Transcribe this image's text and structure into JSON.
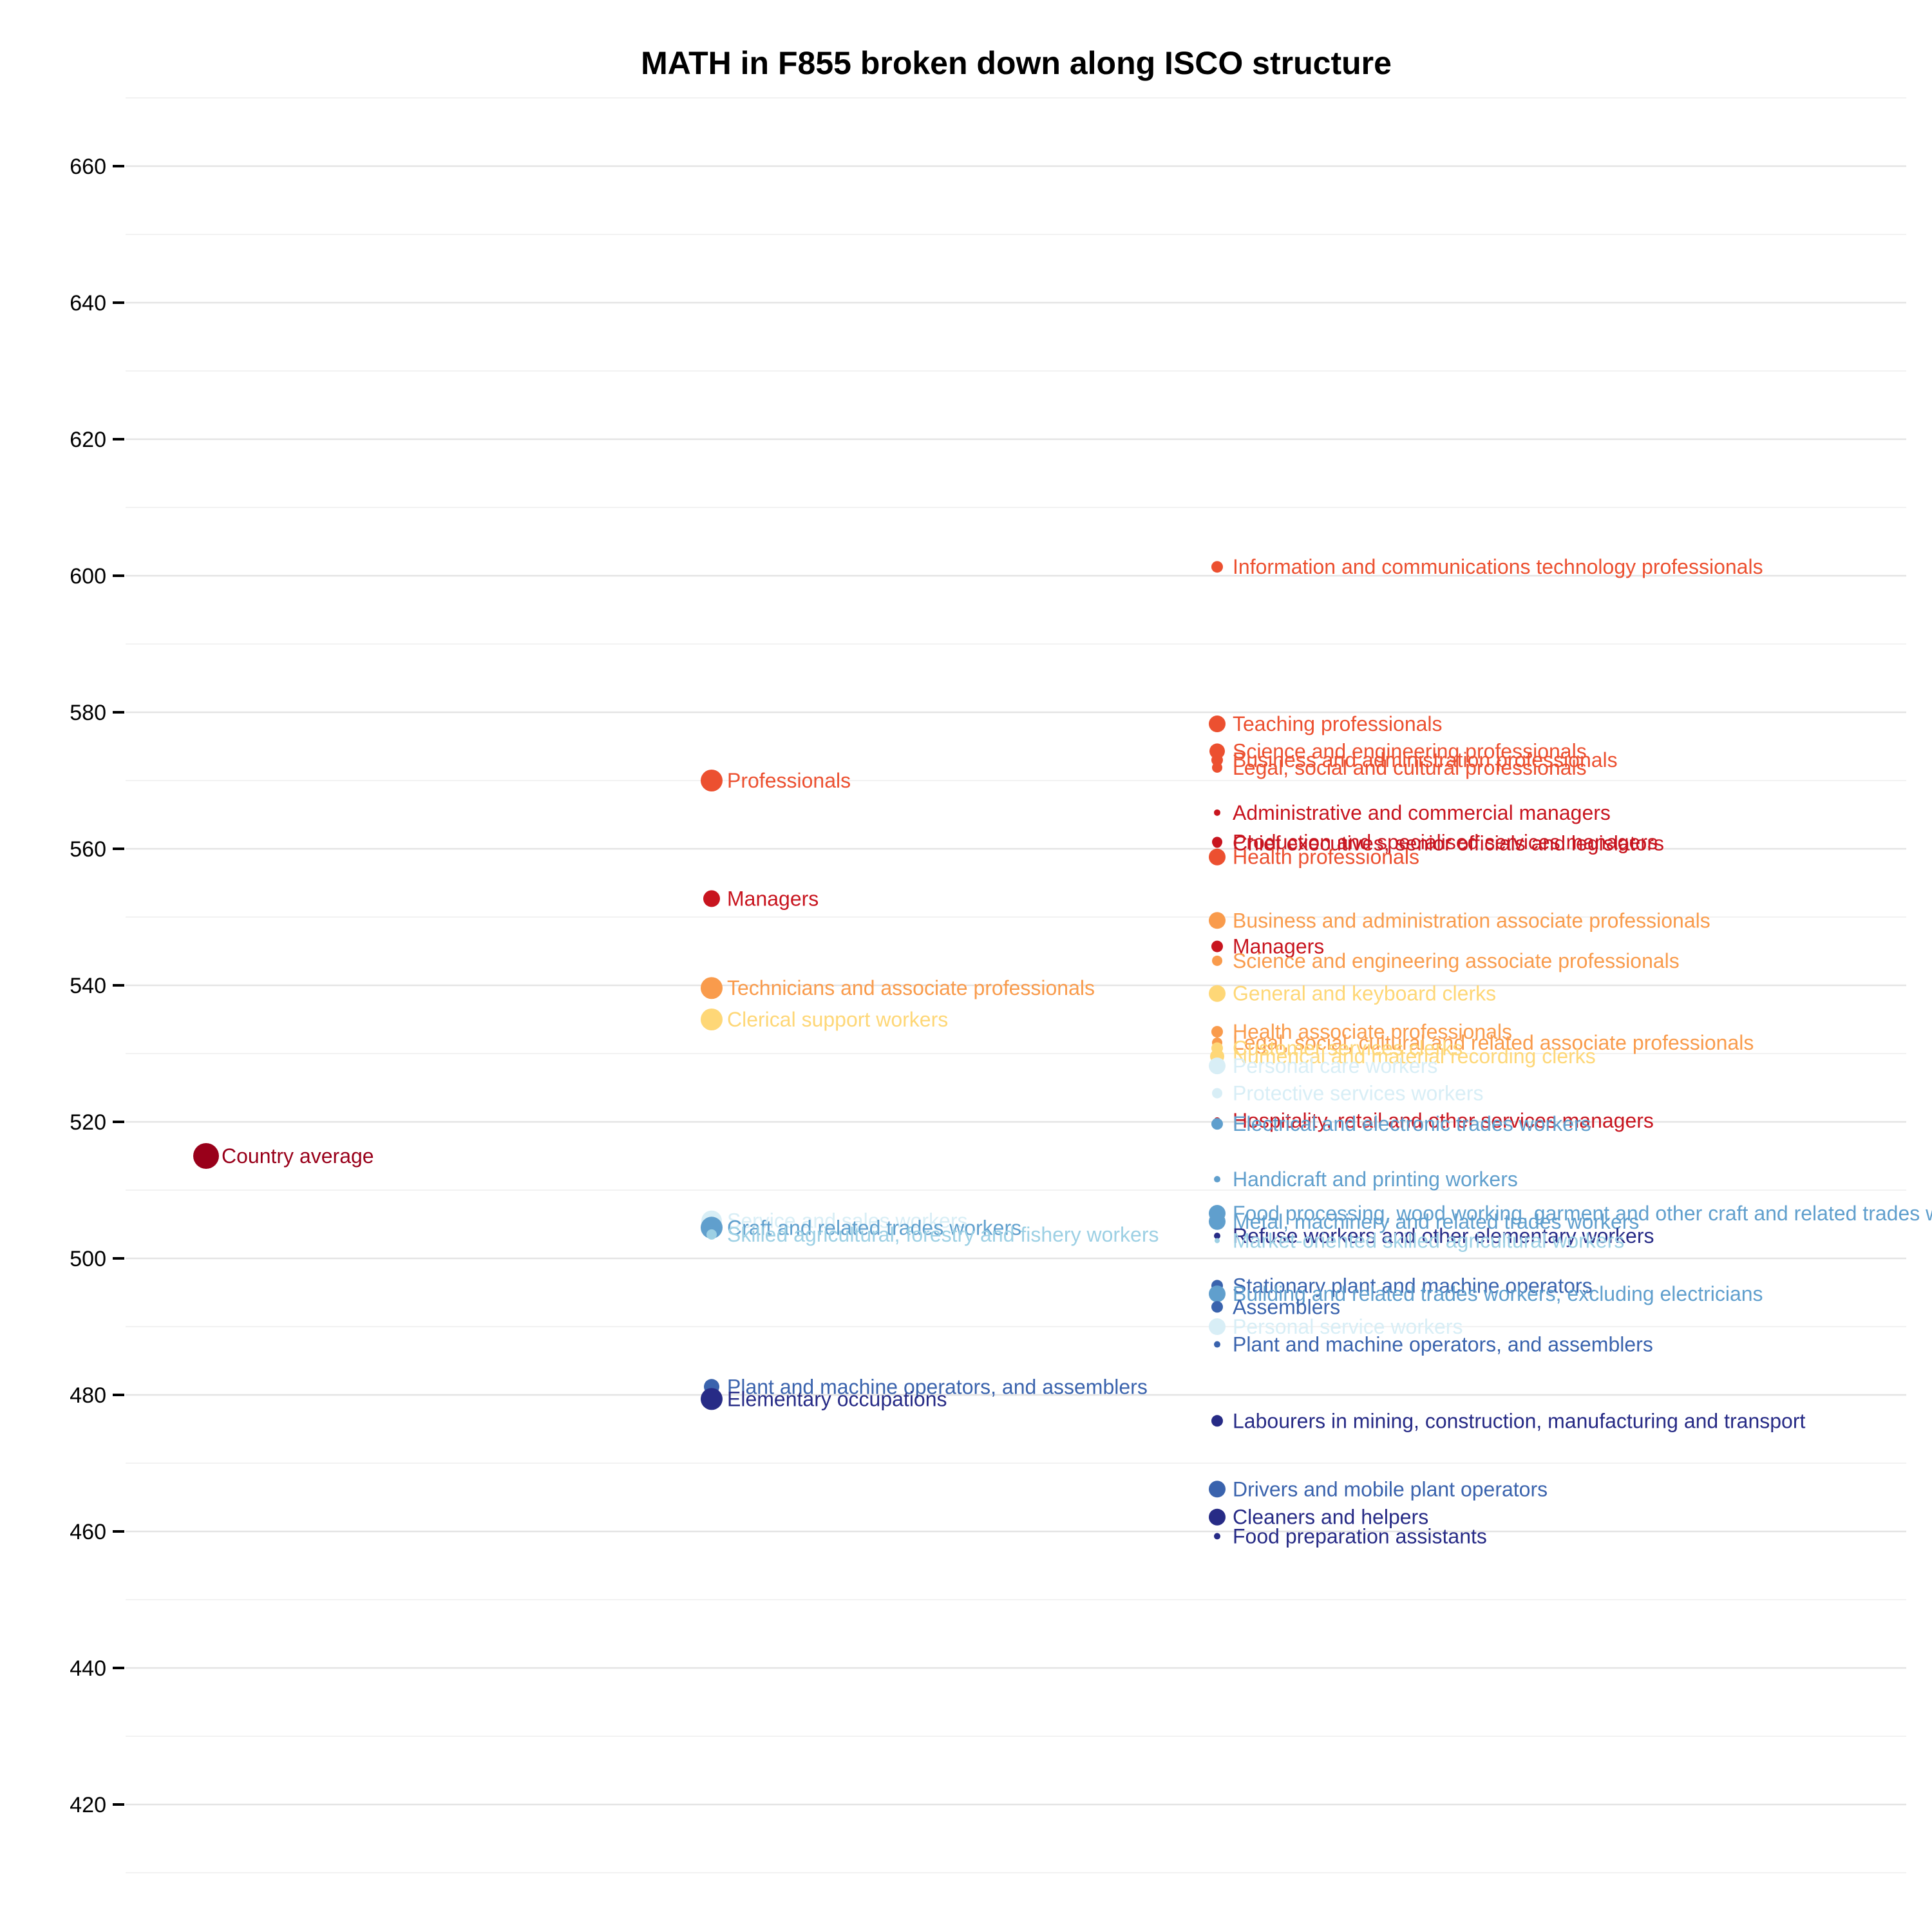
{
  "chart_data": {
    "type": "scatter",
    "title": "MATH in F855 broken down along ISCO structure",
    "xlabel": "",
    "ylabel": "",
    "ylim": [
      410,
      670
    ],
    "yticks": [
      420,
      440,
      460,
      480,
      500,
      520,
      540,
      560,
      580,
      600,
      620,
      640,
      660
    ],
    "grid": true,
    "legend": "none",
    "levels": [
      0,
      1,
      2
    ],
    "points": [
      {
        "level": 0,
        "label": "Country average",
        "value": 515,
        "color": "#99001a",
        "size": 20
      },
      {
        "level": 1,
        "label": "Professionals",
        "value": 570,
        "color": "#ec5030",
        "size": 17
      },
      {
        "level": 1,
        "label": "Managers",
        "value": 552.7,
        "color": "#c8151f",
        "size": 13
      },
      {
        "level": 1,
        "label": "Technicians and associate professionals",
        "value": 539.6,
        "color": "#f99b4c",
        "size": 17
      },
      {
        "level": 1,
        "label": "Clerical support workers",
        "value": 535,
        "color": "#fed777",
        "size": 17
      },
      {
        "level": 1,
        "label": "Service and sales workers",
        "value": 505.5,
        "color": "#d8eef6",
        "size": 16
      },
      {
        "level": 1,
        "label": "Craft and related trades workers",
        "value": 504.5,
        "color": "#609fcd",
        "size": 17
      },
      {
        "level": 1,
        "label": "Skilled agricultural, forestry and fishery workers",
        "value": 503.5,
        "color": "#9dd0e4",
        "size": 8
      },
      {
        "level": 1,
        "label": "Plant and machine operators, and assemblers",
        "value": 481.2,
        "color": "#3a63ad",
        "size": 12
      },
      {
        "level": 1,
        "label": "Elementary occupations",
        "value": 479.4,
        "color": "#272b86",
        "size": 17
      },
      {
        "level": 2,
        "label": "Information and communications technology professionals",
        "value": 601.3,
        "color": "#ec5030",
        "size": 9
      },
      {
        "level": 2,
        "label": "Teaching professionals",
        "value": 578.3,
        "color": "#ec5030",
        "size": 13
      },
      {
        "level": 2,
        "label": "Science and engineering professionals",
        "value": 574.3,
        "color": "#ec5030",
        "size": 12
      },
      {
        "level": 2,
        "label": "Business and administration professionals",
        "value": 573,
        "color": "#ec5030",
        "size": 9
      },
      {
        "level": 2,
        "label": "Legal, social and cultural professionals",
        "value": 571.9,
        "color": "#ec5030",
        "size": 8
      },
      {
        "level": 2,
        "label": "Administrative and commercial managers",
        "value": 565.3,
        "color": "#c8151f",
        "size": 5
      },
      {
        "level": 2,
        "label": "Production and specialised services managers",
        "value": 561,
        "color": "#c8151f",
        "size": 8
      },
      {
        "level": 2,
        "label": "Chief executives, senior officials and legislators",
        "value": 560.8,
        "color": "#c8151f",
        "size": 7
      },
      {
        "level": 2,
        "label": "Health professionals",
        "value": 558.8,
        "color": "#ec5030",
        "size": 13
      },
      {
        "level": 2,
        "label": "Business and administration associate professionals",
        "value": 549.5,
        "color": "#f99b4c",
        "size": 13
      },
      {
        "level": 2,
        "label": "Managers",
        "value": 545.7,
        "color": "#c8151f",
        "size": 9
      },
      {
        "level": 2,
        "label": "Science and engineering associate professionals",
        "value": 543.6,
        "color": "#f99b4c",
        "size": 8
      },
      {
        "level": 2,
        "label": "General and keyboard clerks",
        "value": 538.8,
        "color": "#fed777",
        "size": 13
      },
      {
        "level": 2,
        "label": "Health associate professionals",
        "value": 533.2,
        "color": "#f99b4c",
        "size": 9
      },
      {
        "level": 2,
        "label": "Legal, social, cultural and related associate professionals",
        "value": 531.6,
        "color": "#f99b4c",
        "size": 8
      },
      {
        "level": 2,
        "label": "Customer services clerks",
        "value": 530.8,
        "color": "#fed777",
        "size": 9
      },
      {
        "level": 2,
        "label": "Numerical and material recording clerks",
        "value": 529.6,
        "color": "#fed777",
        "size": 11
      },
      {
        "level": 2,
        "label": "Personal care workers",
        "value": 528.2,
        "color": "#d8eef6",
        "size": 13
      },
      {
        "level": 2,
        "label": "Protective services workers",
        "value": 524.2,
        "color": "#d8eef6",
        "size": 8
      },
      {
        "level": 2,
        "label": "Hospitality, retail and other services managers",
        "value": 520.2,
        "color": "#c8151f",
        "size": 5
      },
      {
        "level": 2,
        "label": "Electrical and electronic trades workers",
        "value": 519.7,
        "color": "#609fcd",
        "size": 9
      },
      {
        "level": 2,
        "label": "Handicraft and printing workers",
        "value": 511.6,
        "color": "#609fcd",
        "size": 5
      },
      {
        "level": 2,
        "label": "Food processing, wood working, garment and other craft and related trades workers",
        "value": 506.6,
        "color": "#609fcd",
        "size": 13
      },
      {
        "level": 2,
        "label": "Metal, machinery and related trades workers",
        "value": 505.4,
        "color": "#609fcd",
        "size": 13
      },
      {
        "level": 2,
        "label": "Refuse workers and other elementary workers",
        "value": 503.3,
        "color": "#272b86",
        "size": 5
      },
      {
        "level": 2,
        "label": "Market-oriented skilled agricultural workers",
        "value": 502.6,
        "color": "#9dd0e4",
        "size": 4
      },
      {
        "level": 2,
        "label": "Stationary plant and machine operators",
        "value": 496,
        "color": "#3a63ad",
        "size": 9
      },
      {
        "level": 2,
        "label": "Building and related trades workers, excluding electricians",
        "value": 494.8,
        "color": "#609fcd",
        "size": 13
      },
      {
        "level": 2,
        "label": "Assemblers",
        "value": 492.9,
        "color": "#3a63ad",
        "size": 9
      },
      {
        "level": 2,
        "label": "Personal service workers",
        "value": 490,
        "color": "#d8eef6",
        "size": 13
      },
      {
        "level": 2,
        "label": "Plant and machine operators, and assemblers",
        "value": 487.4,
        "color": "#3a63ad",
        "size": 5
      },
      {
        "level": 2,
        "label": "Labourers in mining, construction, manufacturing and transport",
        "value": 476.2,
        "color": "#272b86",
        "size": 9
      },
      {
        "level": 2,
        "label": "Drivers and mobile plant operators",
        "value": 466.2,
        "color": "#3a63ad",
        "size": 13
      },
      {
        "level": 2,
        "label": "Cleaners and helpers",
        "value": 462.1,
        "color": "#272b86",
        "size": 13
      },
      {
        "level": 2,
        "label": "Food preparation assistants",
        "value": 459.3,
        "color": "#272b86",
        "size": 5
      }
    ]
  }
}
